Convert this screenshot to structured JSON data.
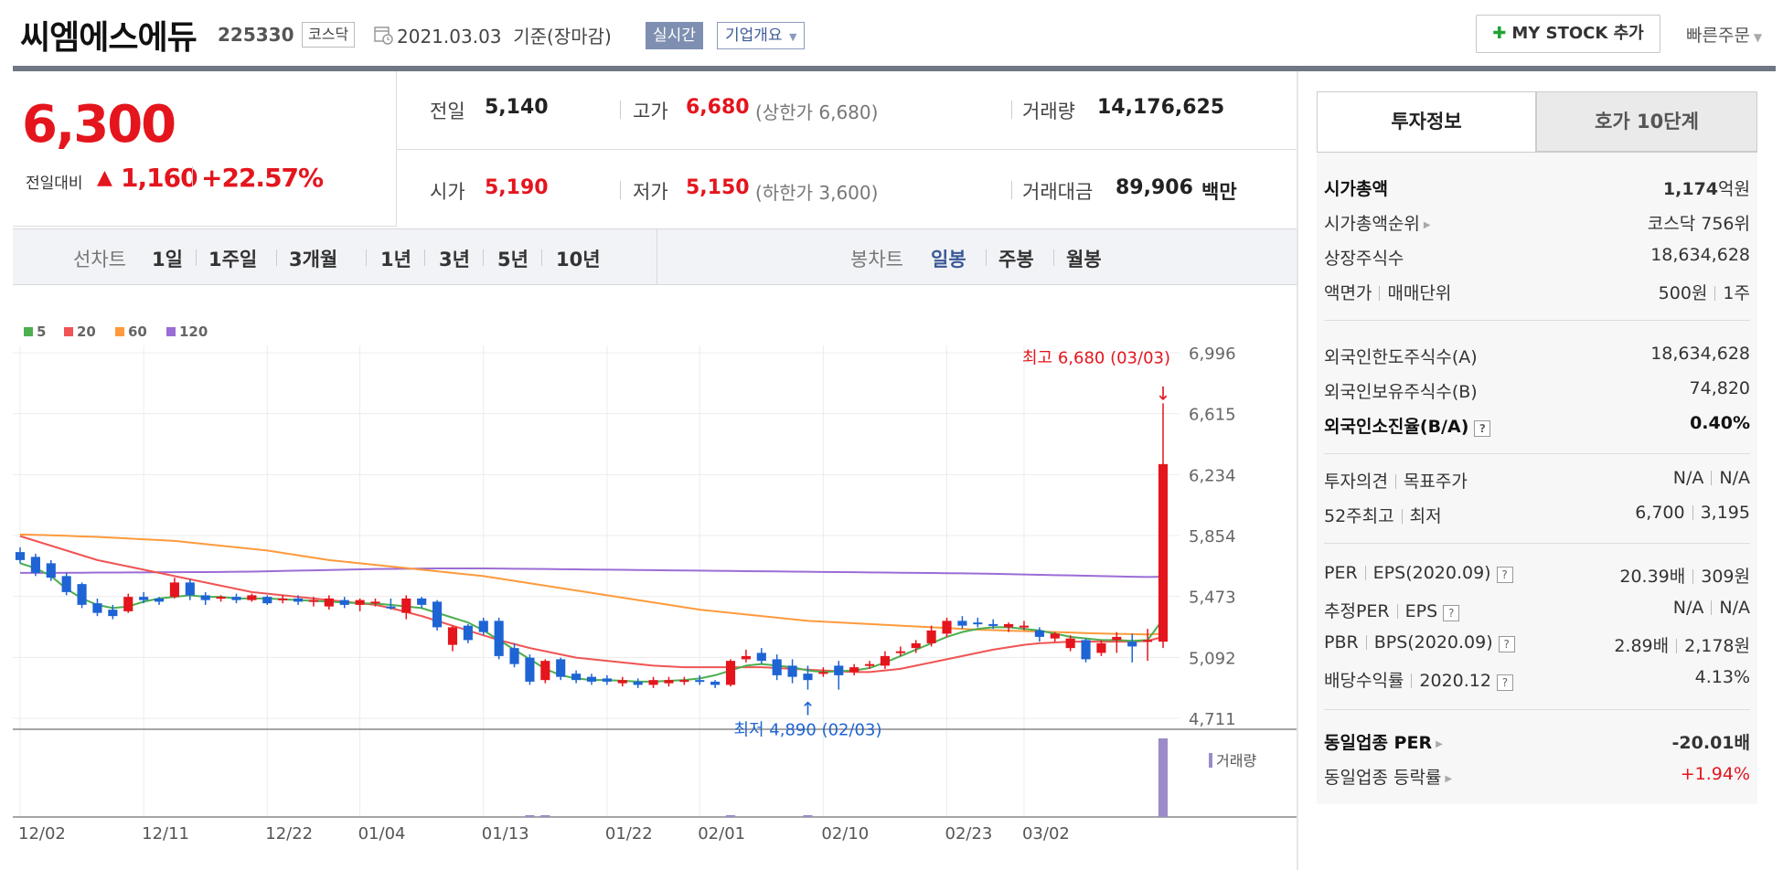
{
  "header": {
    "company_name": "씨엠에스에듀",
    "stock_code": "225330",
    "market": "코스닥",
    "base_date": "2021.03.03  기준(장마감)",
    "realtime_label": "실시간",
    "company_info_label": "기업개요",
    "mystock_label": "MY STOCK 추가",
    "quick_order_label": "빠른주문"
  },
  "price": {
    "current": "6,300",
    "change_label": "전일대비",
    "change_value": "1,160",
    "change_rate": "+22.57%",
    "direction": "up",
    "up_color": "#e4151d"
  },
  "stats": {
    "prev_close_label": "전일",
    "prev_close": "5,140",
    "high_label": "고가",
    "high": "6,680",
    "upper_limit": "(상한가 6,680)",
    "volume_label": "거래량",
    "volume": "14,176,625",
    "open_label": "시가",
    "open": "5,190",
    "low_label": "저가",
    "low": "5,150",
    "lower_limit": "(하한가 3,600)",
    "amount_label": "거래대금",
    "amount": "89,906",
    "amount_unit": "백만"
  },
  "period_bar": {
    "line_chart_label": "선차트",
    "line_periods": [
      "1일",
      "1주일",
      "3개월",
      "1년",
      "3년",
      "5년",
      "10년"
    ],
    "candle_chart_label": "봉차트",
    "candle_periods": [
      "일봉",
      "주봉",
      "월봉"
    ],
    "active_candle": "일봉"
  },
  "chart_data": {
    "type": "candlestick",
    "legend": [
      {
        "name": "5",
        "color": "#4caf50"
      },
      {
        "name": "20",
        "color": "#f05454"
      },
      {
        "name": "60",
        "color": "#ff9a3c"
      },
      {
        "name": "120",
        "color": "#9b6dd6"
      }
    ],
    "y_ticks": [
      "6,996",
      "6,615",
      "6,234",
      "5,854",
      "5,473",
      "5,092",
      "4,711"
    ],
    "ylim": [
      4711,
      6996
    ],
    "x_ticks": [
      "12/02",
      "12/11",
      "12/22",
      "01/04",
      "01/13",
      "01/22",
      "02/01",
      "02/10",
      "02/23",
      "03/02"
    ],
    "high_annotation": "최고 6,680 (03/03)",
    "low_annotation": "최저 4,890 (02/03)",
    "volume_label": "거래량",
    "up_color": "#e4151d",
    "down_color": "#1e64d4",
    "candles": [
      [
        5750,
        5780,
        5700,
        5680
      ],
      [
        5720,
        5740,
        5620,
        5600
      ],
      [
        5680,
        5700,
        5590,
        5570
      ],
      [
        5600,
        5620,
        5500,
        5480
      ],
      [
        5550,
        5560,
        5420,
        5400
      ],
      [
        5430,
        5460,
        5370,
        5350
      ],
      [
        5390,
        5420,
        5350,
        5330
      ],
      [
        5380,
        5490,
        5470,
        5370
      ],
      [
        5470,
        5500,
        5450,
        5430
      ],
      [
        5460,
        5470,
        5440,
        5420
      ],
      [
        5470,
        5590,
        5560,
        5460
      ],
      [
        5560,
        5580,
        5480,
        5450
      ],
      [
        5480,
        5500,
        5450,
        5420
      ],
      [
        5460,
        5480,
        5470,
        5440
      ],
      [
        5470,
        5490,
        5450,
        5430
      ],
      [
        5450,
        5490,
        5480,
        5440
      ],
      [
        5470,
        5480,
        5430,
        5420
      ],
      [
        5450,
        5480,
        5460,
        5430
      ],
      [
        5460,
        5480,
        5440,
        5420
      ],
      [
        5440,
        5470,
        5450,
        5410
      ],
      [
        5410,
        5480,
        5460,
        5390
      ],
      [
        5450,
        5470,
        5420,
        5400
      ],
      [
        5420,
        5460,
        5450,
        5380
      ],
      [
        5440,
        5460,
        5440,
        5410
      ],
      [
        5410,
        5460,
        5400,
        5390
      ],
      [
        5370,
        5480,
        5460,
        5330
      ],
      [
        5460,
        5470,
        5420,
        5400
      ],
      [
        5440,
        5450,
        5280,
        5260
      ],
      [
        5170,
        5290,
        5280,
        5130
      ],
      [
        5290,
        5300,
        5200,
        5180
      ],
      [
        5320,
        5340,
        5250,
        5230
      ],
      [
        5320,
        5340,
        5100,
        5080
      ],
      [
        5150,
        5180,
        5050,
        5030
      ],
      [
        5090,
        5110,
        4940,
        4920
      ],
      [
        4950,
        5080,
        5070,
        4930
      ],
      [
        5080,
        5090,
        4970,
        4950
      ],
      [
        4990,
        5010,
        4950,
        4930
      ],
      [
        4970,
        4990,
        4940,
        4920
      ],
      [
        4960,
        4980,
        4940,
        4920
      ],
      [
        4930,
        4970,
        4950,
        4910
      ],
      [
        4940,
        4960,
        4920,
        4900
      ],
      [
        4920,
        4970,
        4950,
        4900
      ],
      [
        4930,
        4970,
        4950,
        4910
      ],
      [
        4940,
        4970,
        4950,
        4920
      ],
      [
        4950,
        4980,
        4940,
        4920
      ],
      [
        4940,
        4950,
        4920,
        4900
      ],
      [
        4920,
        5080,
        5070,
        4910
      ],
      [
        5080,
        5140,
        5100,
        5060
      ],
      [
        5120,
        5150,
        5070,
        5050
      ],
      [
        5080,
        5110,
        4980,
        4950
      ],
      [
        5040,
        5080,
        4970,
        4930
      ],
      [
        4990,
        5040,
        4950,
        4890
      ],
      [
        4990,
        5030,
        5000,
        4970
      ],
      [
        5040,
        5070,
        4980,
        4890
      ],
      [
        5000,
        5050,
        5030,
        4980
      ],
      [
        5040,
        5070,
        5050,
        5020
      ],
      [
        5040,
        5130,
        5100,
        5020
      ],
      [
        5120,
        5160,
        5130,
        5100
      ],
      [
        5150,
        5200,
        5180,
        5120
      ],
      [
        5180,
        5290,
        5260,
        5160
      ],
      [
        5240,
        5340,
        5320,
        5220
      ],
      [
        5320,
        5350,
        5290,
        5270
      ],
      [
        5310,
        5340,
        5300,
        5280
      ],
      [
        5300,
        5330,
        5290,
        5270
      ],
      [
        5280,
        5310,
        5300,
        5250
      ],
      [
        5280,
        5320,
        5290,
        5260
      ],
      [
        5260,
        5280,
        5220,
        5190
      ],
      [
        5210,
        5250,
        5240,
        5190
      ],
      [
        5150,
        5230,
        5210,
        5130
      ],
      [
        5200,
        5210,
        5080,
        5060
      ],
      [
        5120,
        5200,
        5180,
        5100
      ],
      [
        5200,
        5250,
        5220,
        5120
      ],
      [
        5190,
        5240,
        5160,
        5060
      ],
      [
        5190,
        5270,
        5200,
        5070
      ],
      [
        5190,
        6680,
        6300,
        5150
      ]
    ],
    "ma5": [
      5680,
      5650,
      5600,
      5520,
      5460,
      5420,
      5400,
      5410,
      5440,
      5460,
      5470,
      5480,
      5470,
      5470,
      5460,
      5460,
      5460,
      5455,
      5450,
      5445,
      5440,
      5435,
      5430,
      5428,
      5420,
      5410,
      5400,
      5370,
      5340,
      5310,
      5260,
      5200,
      5140,
      5080,
      5020,
      4980,
      4960,
      4950,
      4950,
      4945,
      4940,
      4940,
      4945,
      4950,
      4960,
      4980,
      5010,
      5040,
      5050,
      5040,
      5030,
      5010,
      5000,
      5005,
      5010,
      5025,
      5060,
      5100,
      5140,
      5180,
      5220,
      5250,
      5270,
      5280,
      5280,
      5270,
      5260,
      5240,
      5220,
      5210,
      5200,
      5200,
      5195,
      5200,
      5330
    ],
    "ma20": [
      5850,
      5820,
      5790,
      5760,
      5730,
      5700,
      5680,
      5660,
      5640,
      5620,
      5600,
      5580,
      5560,
      5540,
      5520,
      5500,
      5490,
      5480,
      5470,
      5460,
      5450,
      5440,
      5430,
      5420,
      5400,
      5375,
      5350,
      5320,
      5290,
      5260,
      5230,
      5200,
      5175,
      5150,
      5130,
      5110,
      5090,
      5080,
      5070,
      5060,
      5050,
      5040,
      5035,
      5030,
      5030,
      5030,
      5030,
      5030,
      5030,
      5025,
      5020,
      5015,
      5010,
      5005,
      5000,
      5000,
      5010,
      5020,
      5040,
      5060,
      5080,
      5100,
      5120,
      5140,
      5155,
      5170,
      5180,
      5185,
      5190,
      5190,
      5190,
      5190,
      5190,
      5195,
      5220
    ],
    "ma60": [
      5860,
      5858,
      5855,
      5852,
      5848,
      5845,
      5840,
      5835,
      5830,
      5825,
      5820,
      5810,
      5800,
      5790,
      5780,
      5770,
      5760,
      5745,
      5730,
      5715,
      5700,
      5690,
      5680,
      5670,
      5660,
      5650,
      5640,
      5630,
      5620,
      5610,
      5600,
      5585,
      5570,
      5555,
      5540,
      5525,
      5510,
      5495,
      5480,
      5465,
      5450,
      5435,
      5420,
      5405,
      5390,
      5380,
      5370,
      5360,
      5350,
      5340,
      5330,
      5320,
      5315,
      5310,
      5305,
      5300,
      5295,
      5290,
      5285,
      5280,
      5275,
      5270,
      5265,
      5262,
      5259,
      5256,
      5253,
      5250,
      5247,
      5244,
      5241,
      5239,
      5237,
      5235,
      5240
    ],
    "ma120": [
      5620,
      5620,
      5620,
      5621,
      5621,
      5622,
      5622,
      5623,
      5623,
      5624,
      5624,
      5625,
      5625,
      5626,
      5627,
      5628,
      5630,
      5632,
      5634,
      5636,
      5638,
      5640,
      5642,
      5644,
      5645,
      5646,
      5647,
      5648,
      5648,
      5648,
      5648,
      5647,
      5646,
      5645,
      5644,
      5643,
      5642,
      5641,
      5640,
      5639,
      5638,
      5637,
      5636,
      5635,
      5634,
      5633,
      5632,
      5631,
      5630,
      5629,
      5628,
      5627,
      5626,
      5625,
      5624,
      5623,
      5622,
      5621,
      5620,
      5619,
      5618,
      5617,
      5616,
      5614,
      5612,
      5610,
      5608,
      5606,
      5604,
      5602,
      5600,
      5598,
      5596,
      5594,
      5596
    ],
    "volume": [
      0,
      0,
      0,
      0,
      0,
      0,
      0,
      0,
      0,
      0,
      0,
      0,
      0,
      0,
      0,
      0,
      0,
      0,
      0,
      0,
      0,
      0,
      0,
      0,
      0,
      0,
      0,
      0,
      0,
      0,
      0,
      0,
      0,
      0.02,
      0.02,
      0,
      0,
      0,
      0,
      0,
      0,
      0,
      0,
      0,
      0,
      0,
      0.01,
      0,
      0,
      0,
      0,
      0.01,
      0,
      0,
      0,
      0,
      0,
      0,
      0,
      0,
      0,
      0,
      0,
      0,
      0,
      0,
      0,
      0,
      0,
      0,
      0,
      0,
      0,
      0,
      1.0
    ]
  },
  "panel": {
    "tab_invest": "투자정보",
    "tab_hoga": "호가 10단계",
    "rows1": [
      {
        "label": "시가총액",
        "value": "1,174",
        "unit": "억원"
      },
      {
        "label": "시가총액순위",
        "value": "코스닥 756위"
      },
      {
        "label": "상장주식수",
        "value": "18,634,628"
      },
      {
        "label": "액면가",
        "label2": "매매단위",
        "value": "500원",
        "value2": "1주"
      }
    ],
    "rows2": [
      {
        "label": "외국인한도주식수(A)",
        "value": "18,634,628"
      },
      {
        "label": "외국인보유주식수(B)",
        "value": "74,820"
      },
      {
        "label": "외국인소진율(B/A)",
        "value": "0.40%"
      }
    ],
    "rows3": [
      {
        "label": "투자의견",
        "label2": "목표주가",
        "value": "N/A",
        "value2": "N/A"
      },
      {
        "label": "52주최고",
        "label2": "최저",
        "value": "6,700",
        "value2": "3,195"
      }
    ],
    "rows4": [
      {
        "label": "PER",
        "label2": "EPS(2020.09)",
        "value": "20.39배",
        "value2": "309원"
      },
      {
        "label": "추정PER",
        "label2": "EPS",
        "value": "N/A",
        "value2": "N/A"
      },
      {
        "label": "PBR",
        "label2": "BPS(2020.09)",
        "value": "2.89배",
        "value2": "2,178원"
      },
      {
        "label": "배당수익률",
        "label2": "2020.12",
        "value": "4.13%"
      }
    ],
    "rows5": [
      {
        "label": "동일업종 PER",
        "value": "-20.01",
        "unit": "배"
      },
      {
        "label": "동일업종 등락률",
        "value": "+1.94%"
      }
    ],
    "help_icon_glyph": "?"
  }
}
